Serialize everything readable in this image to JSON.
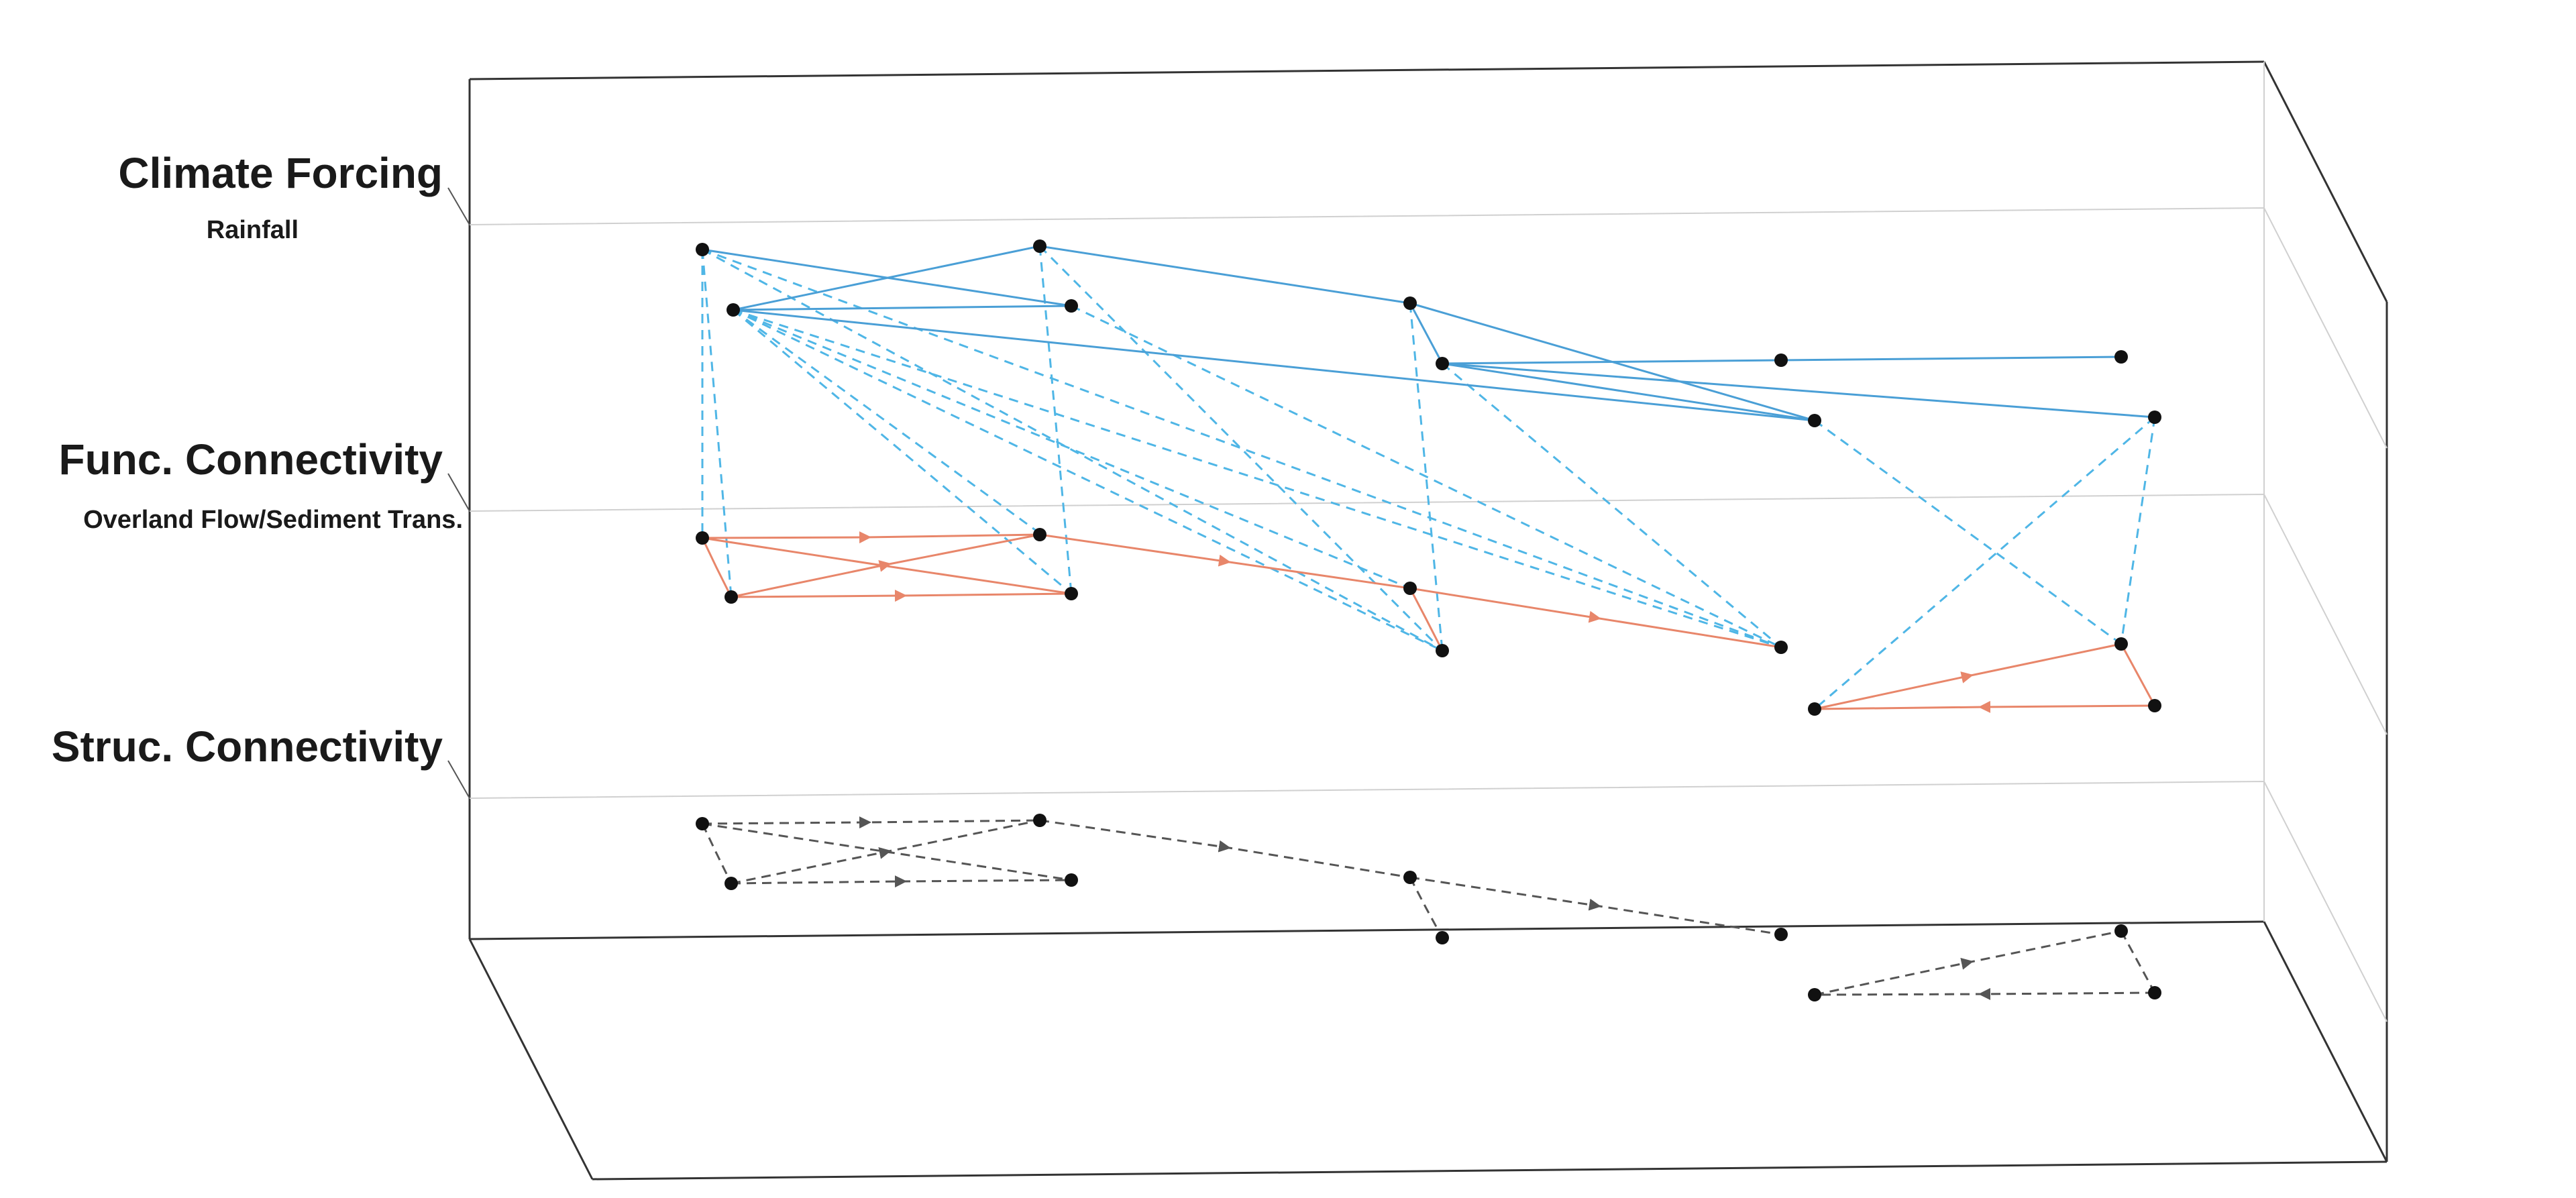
{
  "layers": [
    {
      "key": "climate",
      "title": "Climate Forcing",
      "subtitle": "Rainfall"
    },
    {
      "key": "functional",
      "title": "Func. Connectivity",
      "subtitle": "Overland Flow/Sediment Trans."
    },
    {
      "key": "structural",
      "title": "Struc. Connectivity",
      "subtitle": ""
    }
  ],
  "colors": {
    "climate_edge": "#4a9fd6",
    "interlayer_edge": "#4fb6e6",
    "functional_edge": "#e8866a",
    "structural_edge": "#555555",
    "node": "#111111",
    "frame": "#333333",
    "plane": "#d0d0d0"
  }
}
